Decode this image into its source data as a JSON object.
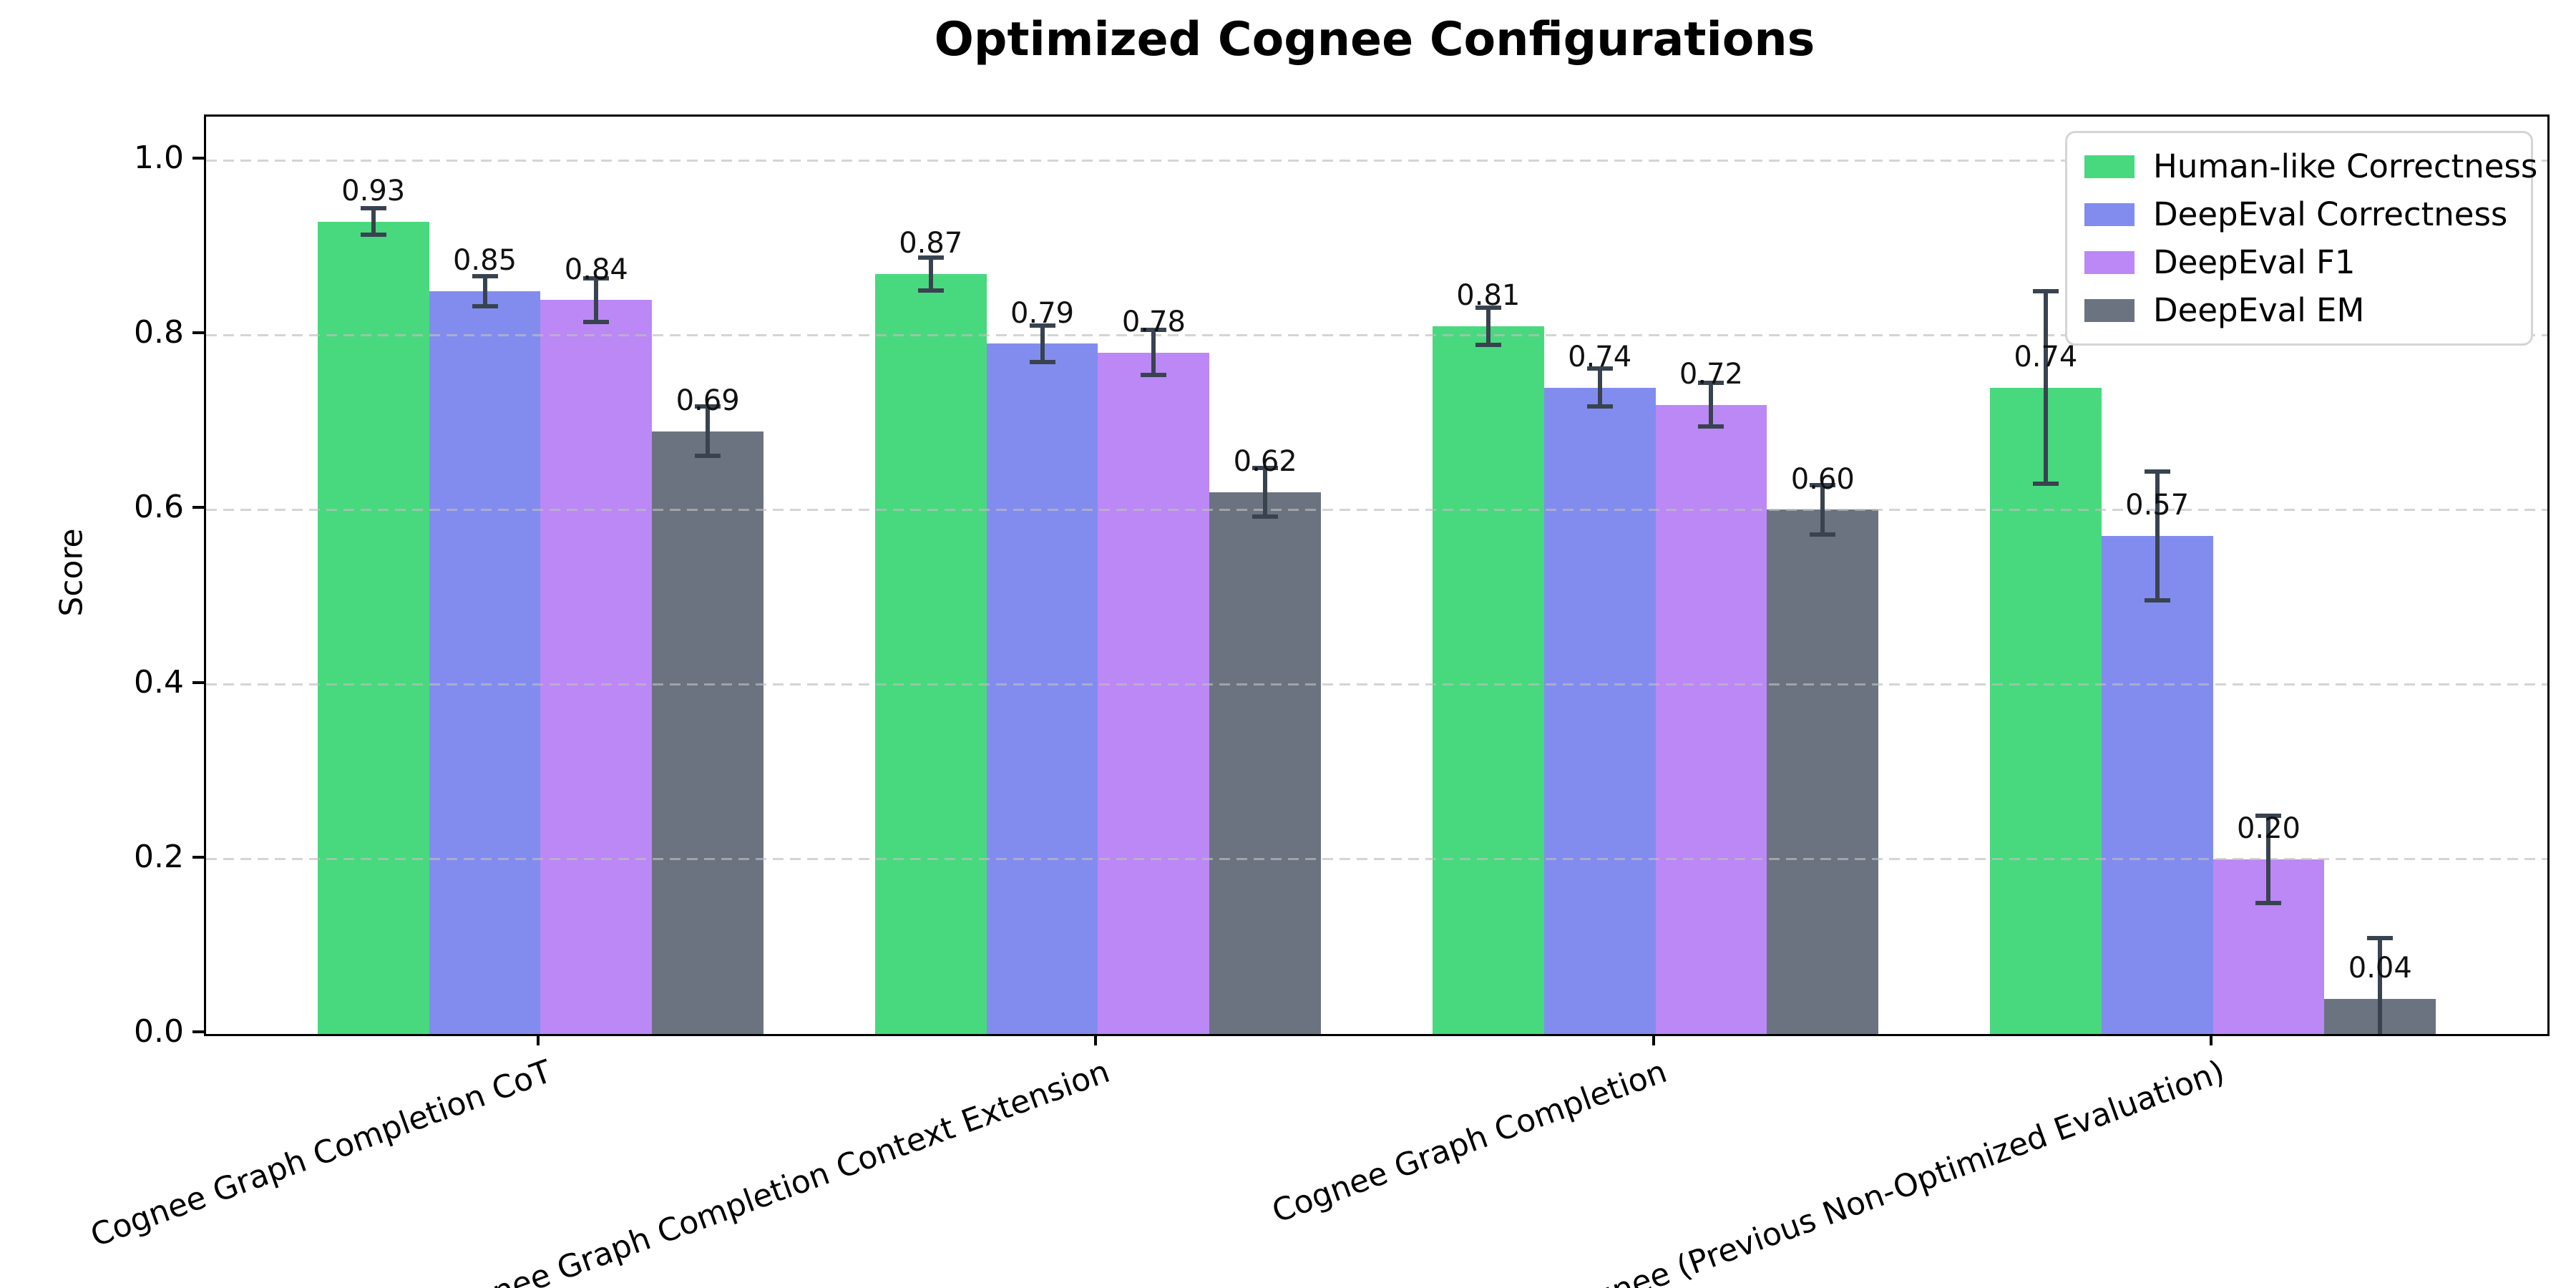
{
  "title": "Optimized Cognee Configurations",
  "chart_data": {
    "type": "bar",
    "title": "Optimized Cognee Configurations",
    "xlabel": "",
    "ylabel": "Score",
    "ylim": [
      0,
      1.05
    ],
    "yticks": [
      0.0,
      0.2,
      0.4,
      0.6,
      0.8,
      1.0
    ],
    "grid": true,
    "grid_style": "dashed",
    "legend_position": "upper right",
    "categories": [
      "Cognee Graph Completion CoT",
      "Cognee Graph Completion Context Extension",
      "Cognee Graph Completion",
      "Cognee (Previous Non-Optimized Evaluation)"
    ],
    "series": [
      {
        "name": "Human-like Correctness",
        "color": "#48d97e",
        "values": [
          0.93,
          0.87,
          0.81,
          0.74
        ],
        "errors": [
          0.015,
          0.019,
          0.021,
          0.11
        ]
      },
      {
        "name": "DeepEval Correctness",
        "color": "#828cef",
        "values": [
          0.85,
          0.79,
          0.74,
          0.57
        ],
        "errors": [
          0.017,
          0.021,
          0.022,
          0.074
        ]
      },
      {
        "name": "DeepEval F1",
        "color": "#bb88f5",
        "values": [
          0.84,
          0.78,
          0.72,
          0.2
        ],
        "errors": [
          0.025,
          0.026,
          0.025,
          0.05
        ]
      },
      {
        "name": "DeepEval EM",
        "color": "#6b7380",
        "values": [
          0.69,
          0.62,
          0.6,
          0.04
        ],
        "errors": [
          0.028,
          0.028,
          0.028,
          0.07
        ]
      }
    ],
    "bar_label_decimals": 2
  },
  "colors": {
    "error_bar": "#394350",
    "grid": "#bebebe",
    "axis": "#000000",
    "legend_border": "#d5d5d5",
    "background": "#ffffff"
  }
}
